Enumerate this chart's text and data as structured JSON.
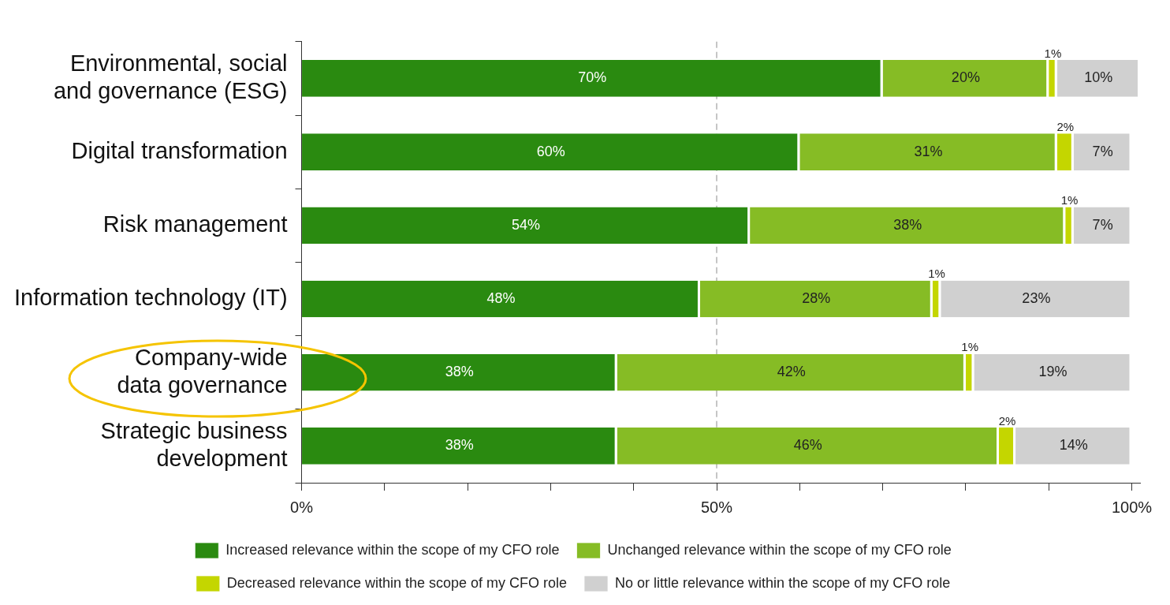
{
  "chart_data": {
    "type": "bar",
    "orientation": "horizontal",
    "stacked": true,
    "categories": [
      "Environmental, social and governance (ESG)",
      "Digital transformation",
      "Risk management",
      "Information technology (IT)",
      "Company-wide data governance",
      "Strategic business development"
    ],
    "series": [
      {
        "name": "Increased relevance within the scope of my CFO role",
        "color": "#2a8a10",
        "values": [
          70,
          60,
          54,
          48,
          38,
          38
        ],
        "value_labels": [
          "70%",
          "60%",
          "54%",
          "48%",
          "38%",
          "38%"
        ]
      },
      {
        "name": "Unchanged relevance within the scope of my CFO role",
        "color": "#86bc25",
        "values": [
          20,
          31,
          38,
          28,
          42,
          46
        ],
        "value_labels": [
          "20%",
          "31%",
          "38%",
          "28%",
          "42%",
          "46%"
        ]
      },
      {
        "name": "Decreased relevance within the scope of my CFO role",
        "color": "#c4d600",
        "values": [
          1,
          2,
          1,
          1,
          1,
          2
        ],
        "value_labels": [
          "1%",
          "2%",
          "1%",
          "1%",
          "1%",
          "2%"
        ]
      },
      {
        "name": "No or little relevance within the scope of my CFO role",
        "color": "#d0d0d0",
        "values": [
          10,
          7,
          7,
          23,
          19,
          14
        ],
        "value_labels": [
          "10%",
          "7%",
          "7%",
          "23%",
          "19%",
          "14%"
        ]
      }
    ],
    "xlim": [
      0,
      101
    ],
    "xticks": [
      {
        "value": 0,
        "label": "0%"
      },
      {
        "value": 10,
        "label": null
      },
      {
        "value": 20,
        "label": null
      },
      {
        "value": 30,
        "label": null
      },
      {
        "value": 40,
        "label": null
      },
      {
        "value": 50,
        "label": "50%"
      },
      {
        "value": 60,
        "label": null
      },
      {
        "value": 70,
        "label": null
      },
      {
        "value": 80,
        "label": null
      },
      {
        "value": 90,
        "label": null
      },
      {
        "value": 100,
        "label": "100%"
      }
    ],
    "ref_lines": [
      {
        "axis": "x",
        "value": 50,
        "color": "#a0a0a0",
        "line_style": "dashed"
      }
    ],
    "grid": false,
    "legend": "bottom"
  }
}
